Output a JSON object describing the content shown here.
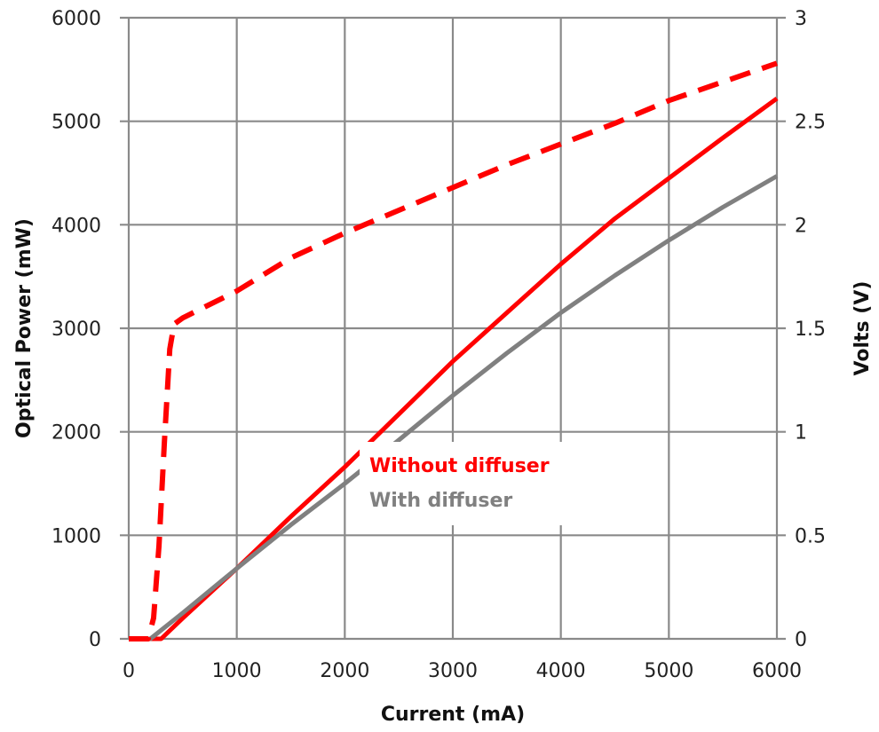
{
  "chart_data": {
    "type": "line",
    "title": "",
    "xlabel": "Current (mA)",
    "ylabel_left": "Optical Power (mW)",
    "ylabel_right": "Volts (V)",
    "xlim": [
      0,
      6000
    ],
    "ylim_left": [
      0,
      6000
    ],
    "ylim_right": [
      0,
      3
    ],
    "x_ticks": [
      0,
      1000,
      2000,
      3000,
      4000,
      5000,
      6000
    ],
    "y_left_ticks": [
      0,
      1000,
      2000,
      3000,
      4000,
      5000,
      6000
    ],
    "y_right_ticks": [
      0,
      0.5,
      1,
      1.5,
      2,
      2.5,
      3
    ],
    "x_tick_labels": [
      "0",
      "1000",
      "2000",
      "3000",
      "4000",
      "5000",
      "6000"
    ],
    "y_left_tick_labels": [
      "0",
      "1000",
      "2000",
      "3000",
      "4000",
      "5000",
      "6000"
    ],
    "y_right_tick_labels": [
      "0",
      "0.5",
      "1",
      "1.5",
      "2",
      "2.5",
      "3"
    ],
    "grid": true,
    "legend": {
      "placement": "center-left",
      "entries": [
        {
          "label": "Without diffuser",
          "color": "#ff0000"
        },
        {
          "label": "With diffuser",
          "color": "#808080"
        }
      ]
    },
    "series": [
      {
        "name": "Without diffuser",
        "axis": "left",
        "style": "solid",
        "color": "#ff0000",
        "x": [
          0,
          300,
          500,
          1000,
          1500,
          2000,
          2500,
          3000,
          3500,
          4000,
          4500,
          5000,
          5500,
          6000
        ],
        "y": [
          0,
          0,
          200,
          680,
          1180,
          1660,
          2170,
          2680,
          3150,
          3620,
          4060,
          4450,
          4840,
          5220
        ]
      },
      {
        "name": "With diffuser",
        "axis": "left",
        "style": "solid",
        "color": "#808080",
        "x": [
          0,
          200,
          500,
          1000,
          1500,
          2000,
          2500,
          3000,
          3500,
          4000,
          4500,
          5000,
          5500,
          6000
        ],
        "y": [
          0,
          0,
          250,
          680,
          1100,
          1500,
          1920,
          2350,
          2760,
          3150,
          3510,
          3850,
          4170,
          4470
        ]
      },
      {
        "axis": "right",
        "style": "dashed",
        "color": "#ff0000",
        "x": [
          0,
          180,
          230,
          280,
          330,
          380,
          420,
          500,
          1000,
          1500,
          2000,
          2500,
          3000,
          3500,
          4000,
          4500,
          5000,
          5500,
          6000
        ],
        "y": [
          0,
          0,
          0.1,
          0.45,
          0.95,
          1.4,
          1.52,
          1.55,
          1.68,
          1.84,
          1.96,
          2.07,
          2.18,
          2.29,
          2.39,
          2.49,
          2.6,
          2.69,
          2.78
        ]
      }
    ]
  }
}
